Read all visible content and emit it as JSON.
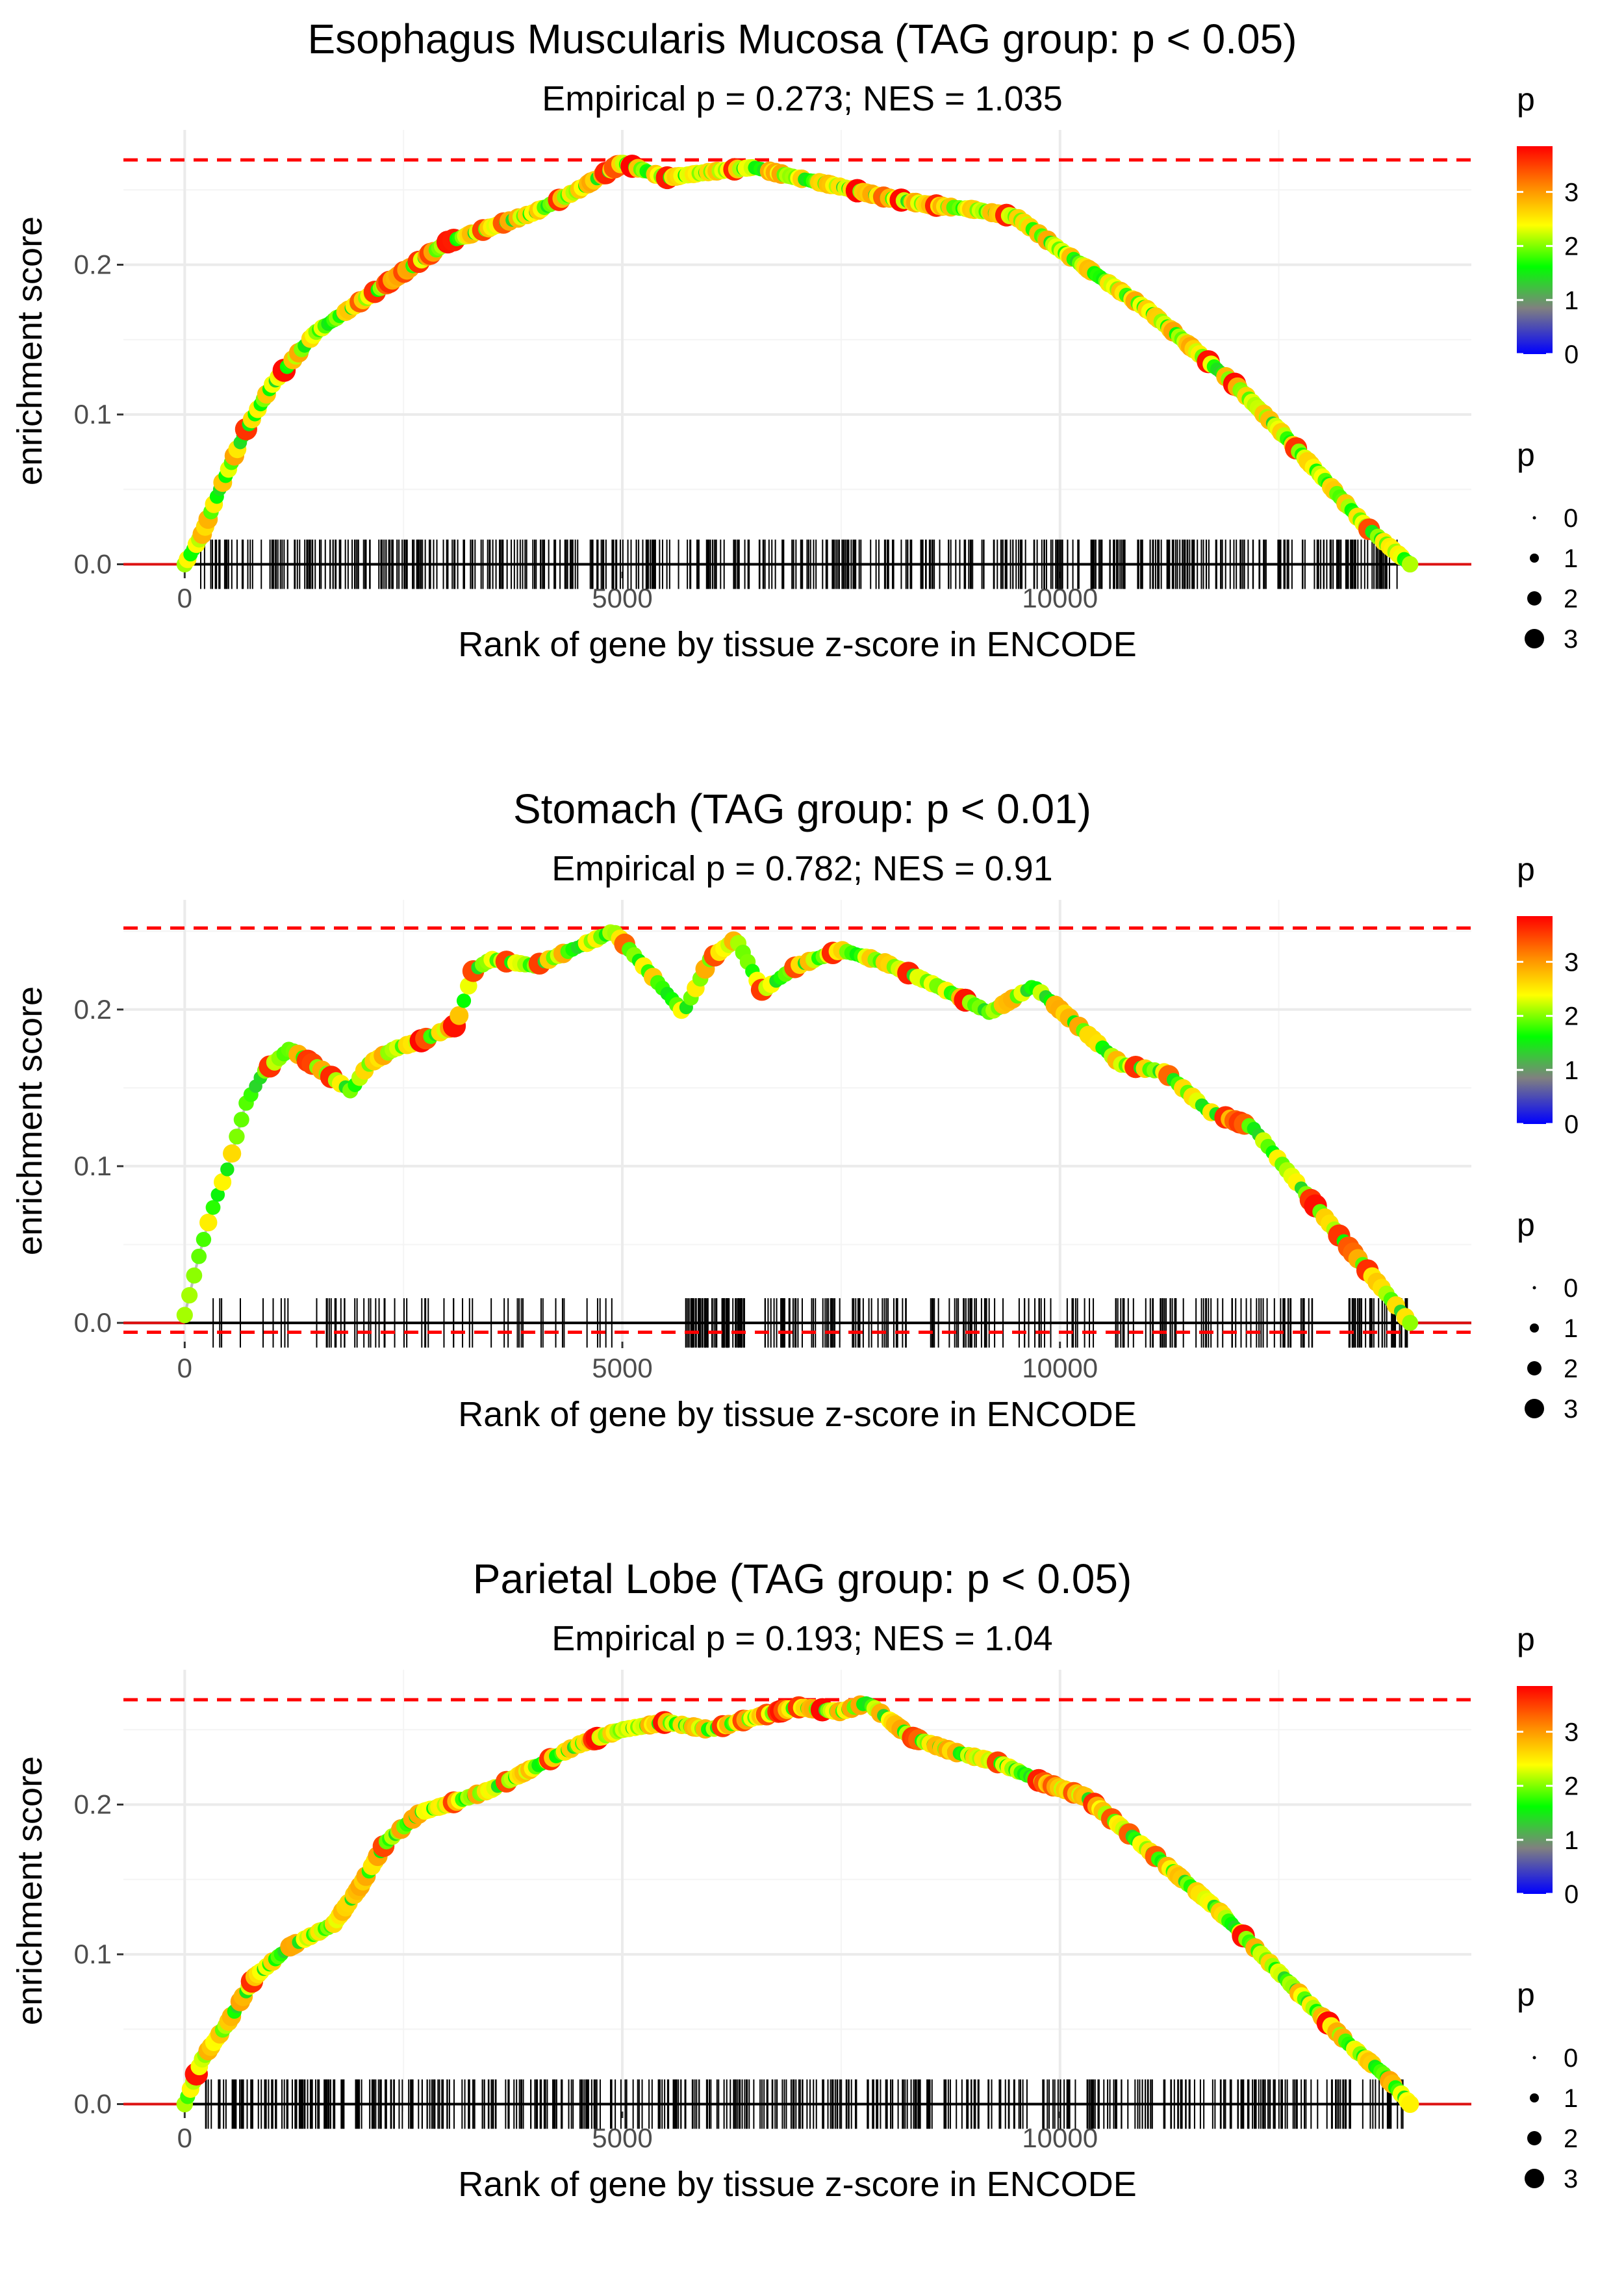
{
  "figure": {
    "x_axis_label": "Rank of gene by tissue z-score in ENCODE",
    "y_axis_label": "enrichment score",
    "legend_color_title": "p",
    "legend_size_title": "p",
    "colorbar_ticks": [
      "0",
      "1",
      "2",
      "3"
    ],
    "size_legend_labels": [
      "0",
      "1",
      "2",
      "3"
    ]
  },
  "colors": {
    "threshold_line": "#ff0000",
    "path_line": "#bdbdbd",
    "gridline": "#ebebeb",
    "rug": "#000000",
    "gradient": [
      "#0000ff",
      "#808080",
      "#00ff00",
      "#ffff00",
      "#ff7f00",
      "#ff0000"
    ]
  },
  "chart_data": [
    {
      "type": "line",
      "title": "Esophagus Muscularis Mucosa (TAG group: p < 0.05)",
      "subtitle": "Empirical p = 0.273; NES = 1.035",
      "xlabel": "Rank of gene by tissue z-score in ENCODE",
      "ylabel": "enrichment score",
      "xlim": [
        -700,
        14700
      ],
      "ylim": [
        -0.005,
        0.29
      ],
      "x_ticks": [
        0,
        5000,
        10000
      ],
      "x_tick_labels": [
        "0",
        "5000",
        "10000"
      ],
      "y_ticks": [
        0.0,
        0.1,
        0.2
      ],
      "y_tick_labels": [
        "0.0",
        "0.1",
        "0.2"
      ],
      "upper_threshold": 0.27,
      "lower_threshold": null,
      "x_max_rank": 14000,
      "n_rug": 520,
      "rug_density": "uniform",
      "curve_x": [
        0,
        200,
        400,
        700,
        1000,
        1500,
        2000,
        2500,
        3000,
        3500,
        4000,
        4500,
        5000,
        5500,
        6000,
        6500,
        7000,
        7500,
        8000,
        8500,
        9000,
        9500,
        10000,
        10500,
        11000,
        11500,
        12000,
        12500,
        13000,
        13500,
        14000
      ],
      "curve_y": [
        0.0,
        0.02,
        0.05,
        0.09,
        0.12,
        0.155,
        0.175,
        0.195,
        0.215,
        0.225,
        0.235,
        0.25,
        0.268,
        0.258,
        0.262,
        0.265,
        0.258,
        0.252,
        0.245,
        0.24,
        0.237,
        0.232,
        0.21,
        0.19,
        0.17,
        0.145,
        0.12,
        0.09,
        0.058,
        0.025,
        0.0
      ],
      "color_label": "p",
      "size_label": "p"
    },
    {
      "type": "line",
      "title": "Stomach (TAG group: p < 0.01)",
      "subtitle": "Empirical p = 0.782; NES = 0.91",
      "xlabel": "Rank of gene by tissue z-score in ENCODE",
      "ylabel": "enrichment score",
      "xlim": [
        -700,
        14700
      ],
      "ylim": [
        -0.012,
        0.27
      ],
      "x_ticks": [
        0,
        5000,
        10000
      ],
      "x_tick_labels": [
        "0",
        "5000",
        "10000"
      ],
      "y_ticks": [
        0.0,
        0.1,
        0.2
      ],
      "y_tick_labels": [
        "0.0",
        "0.1",
        "0.2"
      ],
      "upper_threshold": 0.252,
      "lower_threshold": -0.006,
      "x_max_rank": 14000,
      "n_rug": 330,
      "rug_density": "clustered",
      "curve_x": [
        0,
        150,
        300,
        500,
        700,
        900,
        1200,
        1600,
        1900,
        2100,
        2400,
        2700,
        2900,
        3100,
        3300,
        3500,
        4000,
        4500,
        4900,
        5700,
        6000,
        6300,
        6600,
        7000,
        7500,
        8000,
        8600,
        9200,
        9700,
        10000,
        10300,
        10700,
        11200,
        11700,
        12200,
        12700,
        13200,
        14000
      ],
      "curve_y": [
        0.005,
        0.04,
        0.07,
        0.1,
        0.14,
        0.16,
        0.175,
        0.16,
        0.148,
        0.165,
        0.175,
        0.18,
        0.185,
        0.19,
        0.225,
        0.232,
        0.228,
        0.24,
        0.25,
        0.198,
        0.232,
        0.245,
        0.212,
        0.228,
        0.238,
        0.23,
        0.215,
        0.198,
        0.215,
        0.2,
        0.185,
        0.165,
        0.16,
        0.135,
        0.125,
        0.09,
        0.055,
        0.0
      ],
      "color_label": "p",
      "size_label": "p"
    },
    {
      "type": "line",
      "title": "Parietal Lobe (TAG group: p < 0.05)",
      "subtitle": "Empirical p = 0.193; NES = 1.04",
      "xlabel": "Rank of gene by tissue z-score in ENCODE",
      "ylabel": "enrichment score",
      "xlim": [
        -700,
        14700
      ],
      "ylim": [
        -0.005,
        0.29
      ],
      "x_ticks": [
        0,
        5000,
        10000
      ],
      "x_tick_labels": [
        "0",
        "5000",
        "10000"
      ],
      "y_ticks": [
        0.0,
        0.1,
        0.2
      ],
      "y_tick_labels": [
        "0.0",
        "0.1",
        "0.2"
      ],
      "upper_threshold": 0.27,
      "lower_threshold": null,
      "x_max_rank": 14000,
      "n_rug": 520,
      "rug_density": "uniform",
      "curve_x": [
        0,
        200,
        500,
        800,
        1200,
        1700,
        2000,
        2300,
        2700,
        3000,
        3500,
        4000,
        4500,
        5000,
        5500,
        6000,
        6500,
        7000,
        7500,
        7800,
        8300,
        8800,
        9300,
        9800,
        10300,
        10800,
        11300,
        11800,
        12300,
        12800,
        13300,
        13700,
        14000
      ],
      "curve_y": [
        0.0,
        0.03,
        0.055,
        0.085,
        0.105,
        0.12,
        0.145,
        0.175,
        0.195,
        0.2,
        0.21,
        0.225,
        0.24,
        0.25,
        0.255,
        0.25,
        0.258,
        0.265,
        0.262,
        0.268,
        0.245,
        0.235,
        0.228,
        0.215,
        0.205,
        0.18,
        0.155,
        0.13,
        0.1,
        0.07,
        0.04,
        0.02,
        0.0
      ],
      "color_label": "p",
      "size_label": "p"
    }
  ]
}
